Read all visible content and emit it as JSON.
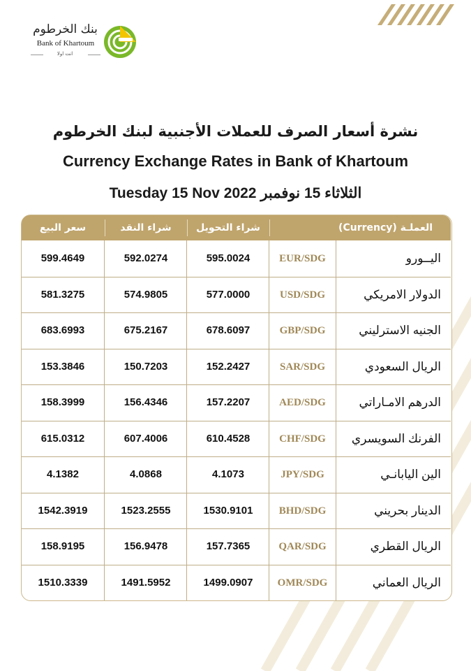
{
  "bank": {
    "name_ar": "بنك الخرطوم",
    "name_en": "Bank of Khartoum",
    "tagline": "انت اولا"
  },
  "titles": {
    "arabic": "نشرة أسعار الصرف للعملات الأجنبية لبنك الخرطوم",
    "english": "Currency Exchange Rates in Bank of Khartoum",
    "date": "Tuesday 15 Nov  2022  الثلاثاء 15 نوفمبر"
  },
  "table": {
    "headers": {
      "sell": "سعر البيع",
      "cash_buy": "شراء النقد",
      "transfer_buy": "شراء التحويل",
      "currency": "العملـة     (Currency)"
    },
    "rows": [
      {
        "name": "اليــورو",
        "code": "EUR/SDG",
        "transfer": "595.0024",
        "cash": "592.0274",
        "sell": "599.4649"
      },
      {
        "name": "الدولار الامريكي",
        "code": "USD/SDG",
        "transfer": "577.0000",
        "cash": "574.9805",
        "sell": "581.3275"
      },
      {
        "name": "الجنيه الاسترليني",
        "code": "GBP/SDG",
        "transfer": "678.6097",
        "cash": "675.2167",
        "sell": "683.6993"
      },
      {
        "name": "الريال السعودي",
        "code": "SAR/SDG",
        "transfer": "152.2427",
        "cash": "150.7203",
        "sell": "153.3846"
      },
      {
        "name": "الدرهم الامـاراتي",
        "code": "AED/SDG",
        "transfer": "157.2207",
        "cash": "156.4346",
        "sell": "158.3999"
      },
      {
        "name": "الفرنك السويسري",
        "code": "CHF/SDG",
        "transfer": "610.4528",
        "cash": "607.4006",
        "sell": "615.0312"
      },
      {
        "name": "الين اليابانـي",
        "code": "JPY/SDG",
        "transfer": "4.1073",
        "cash": "4.0868",
        "sell": "4.1382"
      },
      {
        "name": "الدينار بحريني",
        "code": "BHD/SDG",
        "transfer": "1530.9101",
        "cash": "1523.2555",
        "sell": "1542.3919"
      },
      {
        "name": "الريال القطري",
        "code": "QAR/SDG",
        "transfer": "157.7365",
        "cash": "156.9478",
        "sell": "158.9195"
      },
      {
        "name": "الريال العماني",
        "code": "OMR/SDG",
        "transfer": "1499.0907",
        "cash": "1491.5952",
        "sell": "1510.3339"
      }
    ]
  },
  "colors": {
    "header_gold": "#bfa46c",
    "code_gold": "#a08857",
    "logo_green": "#7ab829"
  }
}
